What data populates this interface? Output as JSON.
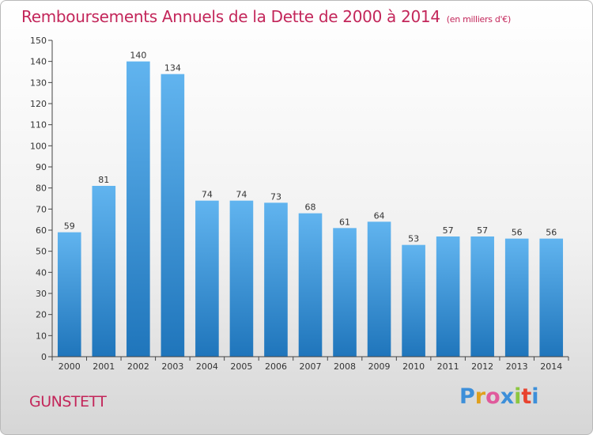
{
  "header": {
    "title": "Remboursements Annuels de la Dette de 2000 à 2014",
    "unit": "(en milliers d'€)"
  },
  "footer": {
    "commune": "GUNSTETT",
    "logo_text": "Proxiti"
  },
  "colors": {
    "title": "#c3265a",
    "bar_top": "#61b4ef",
    "bar_bottom": "#1f75bb",
    "logo_letters": [
      "#3d8fd9",
      "#e0a01d",
      "#e05a9c",
      "#3d8fd9",
      "#8cc63f",
      "#e8432f",
      "#3d8fd9"
    ]
  },
  "chart_data": {
    "type": "bar",
    "title": "Remboursements Annuels de la Dette de 2000 à 2014",
    "subtitle": "(en milliers d'€)",
    "xlabel": "",
    "ylabel": "",
    "categories": [
      "2000",
      "2001",
      "2002",
      "2003",
      "2004",
      "2005",
      "2006",
      "2007",
      "2008",
      "2009",
      "2010",
      "2011",
      "2012",
      "2013",
      "2014"
    ],
    "values": [
      59,
      81,
      140,
      134,
      74,
      74,
      73,
      68,
      61,
      64,
      53,
      57,
      57,
      56,
      56
    ],
    "ylim": [
      0,
      150
    ],
    "yticks": [
      0,
      10,
      20,
      30,
      40,
      50,
      60,
      70,
      80,
      90,
      100,
      110,
      120,
      130,
      140,
      150
    ],
    "grid": false,
    "legend": "none"
  }
}
